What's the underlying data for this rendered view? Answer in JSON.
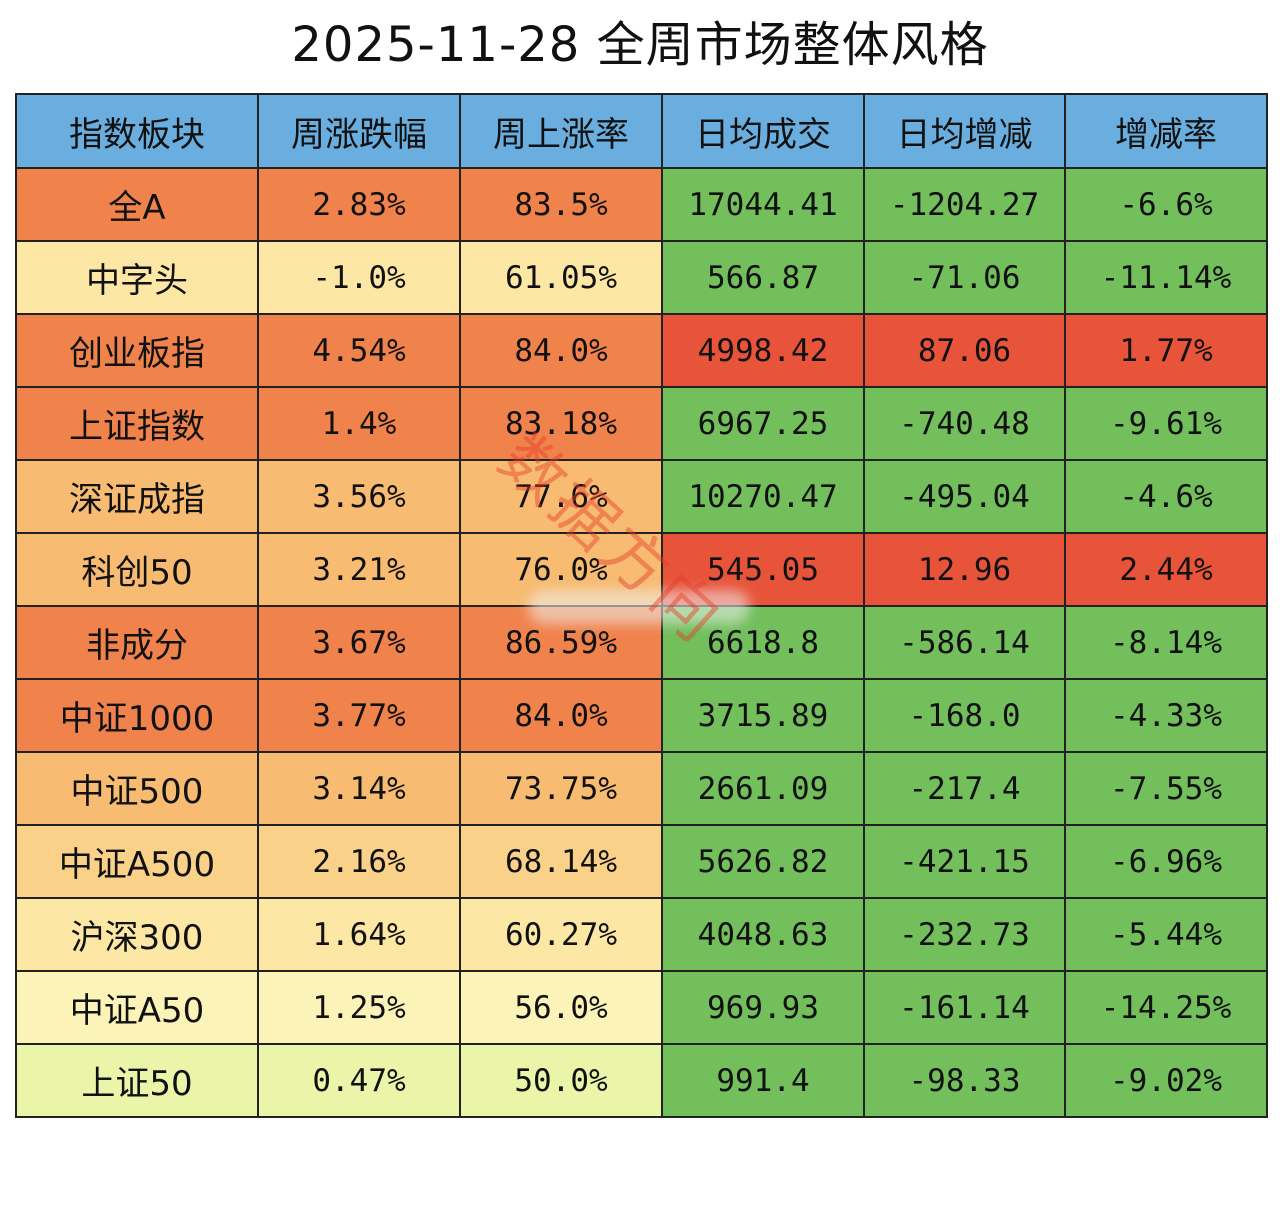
{
  "title": "2025-11-28 全周市场整体风格",
  "watermark": "数据方向",
  "headers": [
    "指数板块",
    "周涨跌幅",
    "周上涨率",
    "日均成交",
    "日均增减",
    "增减率"
  ],
  "rows": [
    {
      "name": "全A",
      "week_change": "2.83%",
      "up_ratio": "83.5%",
      "avg_volume": "17044.41",
      "avg_delta": "-1204.27",
      "delta_rate": "-6.6%"
    },
    {
      "name": "中字头",
      "week_change": "-1.0%",
      "up_ratio": "61.05%",
      "avg_volume": "566.87",
      "avg_delta": "-71.06",
      "delta_rate": "-11.14%"
    },
    {
      "name": "创业板指",
      "week_change": "4.54%",
      "up_ratio": "84.0%",
      "avg_volume": "4998.42",
      "avg_delta": "87.06",
      "delta_rate": "1.77%"
    },
    {
      "name": "上证指数",
      "week_change": "1.4%",
      "up_ratio": "83.18%",
      "avg_volume": "6967.25",
      "avg_delta": "-740.48",
      "delta_rate": "-9.61%"
    },
    {
      "name": "深证成指",
      "week_change": "3.56%",
      "up_ratio": "77.6%",
      "avg_volume": "10270.47",
      "avg_delta": "-495.04",
      "delta_rate": "-4.6%"
    },
    {
      "name": "科创50",
      "week_change": "3.21%",
      "up_ratio": "76.0%",
      "avg_volume": "545.05",
      "avg_delta": "12.96",
      "delta_rate": "2.44%"
    },
    {
      "name": "非成分",
      "week_change": "3.67%",
      "up_ratio": "86.59%",
      "avg_volume": "6618.8",
      "avg_delta": "-586.14",
      "delta_rate": "-8.14%"
    },
    {
      "name": "中证1000",
      "week_change": "3.77%",
      "up_ratio": "84.0%",
      "avg_volume": "3715.89",
      "avg_delta": "-168.0",
      "delta_rate": "-4.33%"
    },
    {
      "name": "中证500",
      "week_change": "3.14%",
      "up_ratio": "73.75%",
      "avg_volume": "2661.09",
      "avg_delta": "-217.4",
      "delta_rate": "-7.55%"
    },
    {
      "name": "中证A500",
      "week_change": "2.16%",
      "up_ratio": "68.14%",
      "avg_volume": "5626.82",
      "avg_delta": "-421.15",
      "delta_rate": "-6.96%"
    },
    {
      "name": "沪深300",
      "week_change": "1.64%",
      "up_ratio": "60.27%",
      "avg_volume": "4048.63",
      "avg_delta": "-232.73",
      "delta_rate": "-5.44%"
    },
    {
      "name": "中证A50",
      "week_change": "1.25%",
      "up_ratio": "56.0%",
      "avg_volume": "969.93",
      "avg_delta": "-161.14",
      "delta_rate": "-14.25%"
    },
    {
      "name": "上证50",
      "week_change": "0.47%",
      "up_ratio": "50.0%",
      "avg_volume": "991.4",
      "avg_delta": "-98.33",
      "delta_rate": "-9.02%"
    }
  ],
  "colors": {
    "header_bg": "#6aaedf",
    "green": "#72bf5c",
    "red": "#e8543a",
    "orange_strong": "#f0834c",
    "orange": "#f4a05e",
    "orange_light": "#f7bb71",
    "peach": "#fad189",
    "yellow": "#fce7a4",
    "pale_yellow": "#fbf3b8",
    "pale_green": "#eaf5a9"
  },
  "row_fills": [
    [
      "orange_strong",
      "orange_strong",
      "orange_strong",
      "green",
      "green",
      "green"
    ],
    [
      "yellow",
      "yellow",
      "yellow",
      "green",
      "green",
      "green"
    ],
    [
      "orange_strong",
      "orange_strong",
      "orange_strong",
      "red",
      "red",
      "red"
    ],
    [
      "orange_strong",
      "orange_strong",
      "orange_strong",
      "green",
      "green",
      "green"
    ],
    [
      "orange_light",
      "orange_light",
      "orange_light",
      "green",
      "green",
      "green"
    ],
    [
      "orange_light",
      "orange_light",
      "orange_light",
      "red",
      "red",
      "red"
    ],
    [
      "orange_strong",
      "orange_strong",
      "orange_strong",
      "green",
      "green",
      "green"
    ],
    [
      "orange_strong",
      "orange_strong",
      "orange_strong",
      "green",
      "green",
      "green"
    ],
    [
      "orange_light",
      "orange_light",
      "orange_light",
      "green",
      "green",
      "green"
    ],
    [
      "peach",
      "peach",
      "peach",
      "green",
      "green",
      "green"
    ],
    [
      "yellow",
      "yellow",
      "yellow",
      "green",
      "green",
      "green"
    ],
    [
      "pale_yellow",
      "pale_yellow",
      "pale_yellow",
      "green",
      "green",
      "green"
    ],
    [
      "pale_green",
      "pale_green",
      "pale_green",
      "green",
      "green",
      "green"
    ]
  ]
}
